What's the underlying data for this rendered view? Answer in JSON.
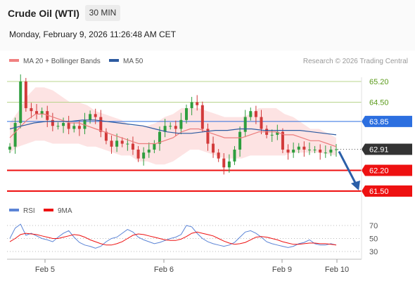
{
  "header": {
    "title": "Crude Oil (WTI)",
    "timeframe": "30 MIN",
    "date": "Monday, February 9, 2026 11:26:48 AM CET"
  },
  "chart_data": {
    "type": "line",
    "instrument": "Crude Oil (WTI)",
    "legend": [
      {
        "name": "MA 20 + Bollinger Bands",
        "color": "#f08080"
      },
      {
        "name": "MA 50",
        "color": "#2c5aa0"
      }
    ],
    "copyright": "Research © 2026 Trading Central",
    "ylim": [
      61.2,
      65.6
    ],
    "x_ticks": [
      "Feb 5",
      "Feb 6",
      "Feb 9",
      "Feb 10"
    ],
    "levels": [
      {
        "value": 65.2,
        "label": "65.20",
        "type": "resistance",
        "color": "#b8d48c",
        "text_color": "#5a9a1a"
      },
      {
        "value": 64.5,
        "label": "64.50",
        "type": "resistance",
        "color": "#b8d48c",
        "text_color": "#5a9a1a"
      },
      {
        "value": 63.85,
        "label": "63.85",
        "type": "pivot",
        "color": "#2c6fe0"
      },
      {
        "value": 62.91,
        "label": "62.91",
        "type": "last price",
        "color": "#333333"
      },
      {
        "value": 62.2,
        "label": "62.20",
        "type": "support",
        "color": "#ee1111"
      },
      {
        "value": 61.5,
        "label": "61.50",
        "type": "support",
        "color": "#ee1111"
      }
    ],
    "price_approx": [
      63.0,
      63.8,
      65.2,
      64.3,
      64.2,
      64.1,
      64.2,
      63.9,
      63.7,
      63.7,
      63.8,
      63.6,
      63.7,
      63.6,
      63.9,
      64.1,
      64.0,
      63.5,
      63.2,
      63.0,
      63.2,
      63.1,
      63.1,
      62.9,
      62.6,
      62.8,
      62.9,
      63.1,
      63.5,
      63.7,
      63.7,
      63.6,
      63.9,
      64.3,
      64.5,
      64.4,
      63.6,
      63.1,
      62.8,
      62.6,
      62.3,
      62.5,
      62.9,
      63.5,
      64.0,
      64.2,
      64.0,
      63.6,
      63.4,
      63.4,
      63.5,
      62.9,
      62.8,
      62.9,
      63.0,
      62.9,
      62.9,
      62.9,
      62.8,
      62.8,
      62.9,
      62.91
    ],
    "ma20_approx": [
      63.3,
      63.6,
      63.9,
      64.1,
      64.1,
      64.0,
      63.9,
      63.8,
      63.8,
      63.7,
      63.6,
      63.5,
      63.4,
      63.3,
      63.2,
      63.1,
      63.1,
      63.1,
      63.2,
      63.3,
      63.5,
      63.6,
      63.6,
      63.5,
      63.4,
      63.3,
      63.3,
      63.3,
      63.4,
      63.5,
      63.5,
      63.5,
      63.4,
      63.4,
      63.3,
      63.2,
      63.2,
      63.1,
      63.0
    ],
    "ma50_approx": [
      63.6,
      63.7,
      63.8,
      63.85,
      63.85,
      63.85,
      63.9,
      63.9,
      63.85,
      63.8,
      63.75,
      63.7,
      63.6,
      63.5,
      63.45,
      63.45,
      63.5,
      63.55,
      63.55,
      63.6,
      63.6,
      63.55,
      63.55,
      63.55,
      63.55,
      63.5,
      63.45,
      63.4
    ],
    "forecast_arrow": {
      "from": 62.91,
      "to": 61.5
    },
    "rsi": {
      "legend": [
        {
          "name": "RSI",
          "color": "#5b84d6"
        },
        {
          "name": "9MA",
          "color": "#ee1111"
        }
      ],
      "ylim": [
        25,
        78
      ],
      "ticks": [
        "70",
        "50",
        "30"
      ],
      "rsi_approx": [
        50,
        66,
        72,
        55,
        58,
        54,
        50,
        48,
        45,
        52,
        58,
        62,
        52,
        44,
        40,
        38,
        35,
        38,
        45,
        50,
        52,
        58,
        64,
        60,
        52,
        48,
        45,
        42,
        44,
        47,
        50,
        52,
        56,
        70,
        68,
        58,
        50,
        45,
        42,
        40,
        38,
        40,
        44,
        52,
        60,
        62,
        58,
        52,
        45,
        42,
        40,
        38,
        36,
        38,
        42,
        44,
        48,
        42,
        40,
        40,
        42,
        40
      ],
      "ma9_approx": [
        45,
        50,
        56,
        58,
        57,
        56,
        54,
        52,
        50,
        50,
        52,
        54,
        56,
        55,
        52,
        48,
        45,
        42,
        40,
        40,
        42,
        45,
        50,
        55,
        57,
        56,
        54,
        52,
        50,
        48,
        47,
        47,
        49,
        53,
        58,
        60,
        58,
        56,
        54,
        50,
        46,
        43,
        41,
        42,
        44,
        48,
        52,
        53,
        52,
        50,
        48,
        45,
        43,
        41,
        41,
        42,
        43,
        43,
        42,
        42,
        41,
        40
      ]
    }
  }
}
